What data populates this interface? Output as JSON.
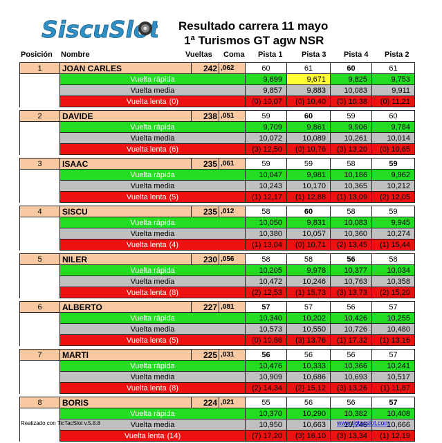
{
  "header": {
    "logo_text": "SiscuSlot",
    "title_line1": "Resultado carrera  11 mayo",
    "title_line2": "1ª Turismos GT agw NSR"
  },
  "columns": {
    "posicion": "Posición",
    "nombre": "Nombre",
    "vueltas": "Vueltas",
    "coma": "Coma",
    "pistas": [
      "Pista 1",
      "Pista 3",
      "Pista 4",
      "Pista 2"
    ]
  },
  "row_labels": {
    "fast": "Vuelta rápida",
    "avg": "Vuelta media",
    "slow": "Vuelta  lenta"
  },
  "colors": {
    "driver_row": "#f8c9a0",
    "fast_row": "#22dd22",
    "avg_row": "#c0c0c0",
    "slow_row": "#ee1111",
    "highlight": "#ffff33"
  },
  "drivers": [
    {
      "pos": "1",
      "name": "JOAN CARLES",
      "laps": "242",
      "coma": ",062",
      "slow_count": "(0)",
      "pistas": [
        "60",
        "61",
        "60",
        "61"
      ],
      "best": [
        false,
        false,
        true,
        false
      ],
      "fast": [
        "9,699",
        "9,671",
        "9,825",
        "9,753"
      ],
      "fast_hl": [
        false,
        true,
        false,
        false
      ],
      "avg": [
        "9,857",
        "9,883",
        "10,083",
        "9,911"
      ],
      "slow": [
        "(0) 10,07",
        "(0) 10,40",
        "(0) 10,38",
        "(0) 11,21"
      ]
    },
    {
      "pos": "2",
      "name": "DAVIDE",
      "laps": "238",
      "coma": ",051",
      "slow_count": "(6)",
      "pistas": [
        "59",
        "60",
        "59",
        "60"
      ],
      "best": [
        false,
        true,
        false,
        false
      ],
      "fast": [
        "9,709",
        "9,861",
        "9,906",
        "9,784"
      ],
      "fast_hl": [
        false,
        false,
        false,
        false
      ],
      "avg": [
        "10,072",
        "10,089",
        "10,261",
        "10,014"
      ],
      "slow": [
        "(3) 12,50",
        "(0) 10,76",
        "(3) 13,20",
        "(0) 10,65"
      ]
    },
    {
      "pos": "3",
      "name": "ISAAC",
      "laps": "235",
      "coma": ",061",
      "slow_count": "(5)",
      "pistas": [
        "59",
        "59",
        "58",
        "59"
      ],
      "best": [
        false,
        false,
        false,
        true
      ],
      "fast": [
        "10,047",
        "9,981",
        "10,186",
        "9,962"
      ],
      "fast_hl": [
        false,
        false,
        false,
        false
      ],
      "avg": [
        "10,243",
        "10,170",
        "10,365",
        "10,212"
      ],
      "slow": [
        "(1) 12,17",
        "(1) 12,88",
        "(1) 13,09",
        "(2) 12,05"
      ]
    },
    {
      "pos": "4",
      "name": "SISCU",
      "laps": "235",
      "coma": ",012",
      "slow_count": "(4)",
      "pistas": [
        "58",
        "60",
        "58",
        "59"
      ],
      "best": [
        false,
        true,
        false,
        false
      ],
      "fast": [
        "10,050",
        "9,831",
        "10,083",
        "9,945"
      ],
      "fast_hl": [
        false,
        false,
        false,
        false
      ],
      "avg": [
        "10,380",
        "10,057",
        "10,360",
        "10,274"
      ],
      "slow": [
        "(1) 13,04",
        "(0) 10,71",
        "(2) 13,45",
        "(1) 15,44"
      ]
    },
    {
      "pos": "5",
      "name": "NILER",
      "laps": "230",
      "coma": ",056",
      "slow_count": "(8)",
      "pistas": [
        "58",
        "58",
        "56",
        "58"
      ],
      "best": [
        false,
        false,
        true,
        false
      ],
      "fast": [
        "10,205",
        "9,978",
        "10,377",
        "10,034"
      ],
      "fast_hl": [
        false,
        false,
        false,
        false
      ],
      "avg": [
        "10,472",
        "10,246",
        "10,763",
        "10,358"
      ],
      "slow": [
        "(2) 12,53",
        "(1) 15,73",
        "(3) 13,73",
        "(2) 15,20"
      ]
    },
    {
      "pos": "6",
      "name": "ALBERTO",
      "laps": "227",
      "coma": ",081",
      "slow_count": "(5)",
      "pistas": [
        "57",
        "57",
        "56",
        "57"
      ],
      "best": [
        true,
        false,
        false,
        false
      ],
      "fast": [
        "10,340",
        "10,202",
        "10,426",
        "10,255"
      ],
      "fast_hl": [
        false,
        false,
        false,
        false
      ],
      "avg": [
        "10,573",
        "10,550",
        "10,726",
        "10,480"
      ],
      "slow": [
        "(0) 10,86",
        "(3) 13,76",
        "(1) 17,32",
        "(1) 13,16"
      ]
    },
    {
      "pos": "7",
      "name": "MARTI",
      "laps": "225",
      "coma": ",031",
      "slow_count": "(8)",
      "pistas": [
        "56",
        "56",
        "56",
        "57"
      ],
      "best": [
        true,
        false,
        false,
        false
      ],
      "fast": [
        "10,476",
        "10,333",
        "10,366",
        "10,241"
      ],
      "fast_hl": [
        false,
        false,
        false,
        false
      ],
      "avg": [
        "10,909",
        "10,686",
        "10,693",
        "10,517"
      ],
      "slow": [
        "(2) 14,34",
        "(2) 15,12",
        "(3) 13,26",
        "(1) 11,87"
      ]
    },
    {
      "pos": "8",
      "name": "BORIS",
      "laps": "224",
      "coma": ",021",
      "slow_count": "(14)",
      "pistas": [
        "55",
        "56",
        "56",
        "57"
      ],
      "best": [
        false,
        false,
        false,
        true
      ],
      "fast": [
        "10,370",
        "10,290",
        "10,382",
        "10,408"
      ],
      "fast_hl": [
        false,
        false,
        false,
        false
      ],
      "avg": [
        "10,950",
        "10,663",
        "10,746",
        "10,666"
      ],
      "slow": [
        "(7) 17,20",
        "(3) 16,10",
        "(3) 13,34",
        "(1) 12,19"
      ]
    }
  ],
  "footer": {
    "left": "Realizado con TicTacSlot v.5.8.8",
    "right": "www.tictacslot.com"
  }
}
